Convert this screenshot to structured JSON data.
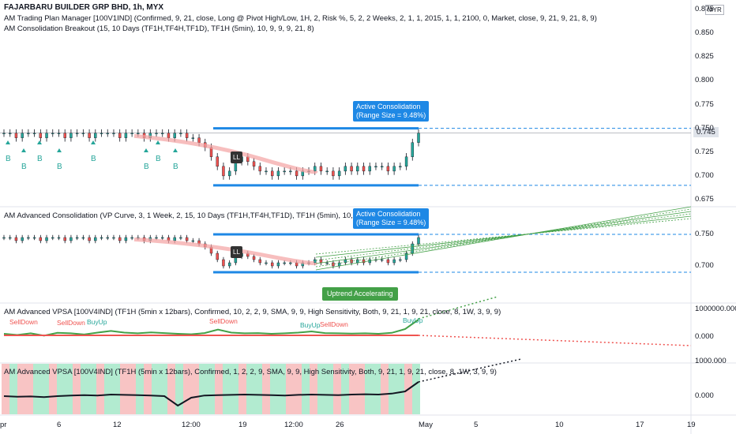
{
  "header": {
    "title": "FAJARBARU BUILDER GRP BHD, 1h, MYX",
    "indicator1": "AM Trading Plan Manager [100V1IND] (Confirmed, 9, 21, close, Long @ Pivot High/Low, 1H, 2, Risk %, 5, 2, 2 Weeks, 2, 1, 1, 2015, 1, 1, 2100, 0, Market, close, 9, 21, 9, 21, 8, 9)",
    "indicator2": "AM Consolidation Breakout (15, 10 Days (TF1H,TF4H,TF1D), TF1H (5min), 10, 9, 9, 9, 21, 8)"
  },
  "currency": "MYR",
  "pane2": {
    "title": "AM Advanced Consolidation (VP Curve, 3, 1 Week, 2, 15, 10 Days (TF1H,TF4H,TF1D), TF1H (5min), 10, 9, 9, 9, 21, 8, 9, 21)",
    "uptrend_label": "Uptrend Accelerating"
  },
  "pane3": {
    "title": "AM Advanced VPSA [100V4IND] (TF1H (5min x 12bars), Confirmed, 10, 2, 2, 9, SMA, 9, 9, High Sensitivity, Both, 9, 21, 1, 9, 21, close, 8, 1W, 3, 9, 9)",
    "tags": [
      {
        "text": "SellDown",
        "color": "#ef5350"
      },
      {
        "text": "SellDown",
        "color": "#ef5350"
      },
      {
        "text": "BuyUp",
        "color": "#26a69a"
      },
      {
        "text": "SellDown",
        "color": "#ef5350"
      },
      {
        "text": "BuyUp",
        "color": "#26a69a"
      },
      {
        "text": "SellDown",
        "color": "#ef5350"
      },
      {
        "text": "BuyUp",
        "color": "#26a69a"
      }
    ]
  },
  "pane4": {
    "title": "AM Advanced VPSA [100V4IND] (TF1H (5min x 12bars), Confirmed, 1, 2, 2, 9, SMA, 9, 9, High Sensitivity, Both, 9, 21, 1, 9, 21, close, 8, 1W, 3, 9, 9)"
  },
  "annotations": {
    "active_consolidation_line1": "Active Consolidation",
    "active_consolidation_line2": "(Range Size = 9.48%)",
    "ll": "LL",
    "b": "B"
  },
  "price_axis": {
    "main": [
      "0.875",
      "0.850",
      "0.825",
      "0.800",
      "0.775",
      "0.750",
      "0.725",
      "0.700",
      "0.675"
    ],
    "current": "0.745",
    "pane2": [
      "0.750",
      "0.700"
    ],
    "pane3": [
      "1000000.000",
      "0.000"
    ],
    "pane4": [
      "1000.000",
      "0.000"
    ]
  },
  "time_axis": [
    "pr",
    "6",
    "12",
    "12:00",
    "19",
    "12:00",
    "26",
    "May",
    "5",
    "10",
    "17",
    "19"
  ],
  "colors": {
    "bull": "#26a69a",
    "bear": "#ef5350",
    "consolidation": "#1e88e5",
    "trend_lines": "#43a047",
    "vp_curve": "#f4a3a3",
    "green_zone": "#b2ebd0",
    "red_zone": "#f8c4c4"
  },
  "chart_data": [
    {
      "type": "candlestick",
      "title": "FAJARBARU BUILDER GRP BHD, 1h, MYX",
      "ylim": [
        0.675,
        0.875
      ],
      "consolidation_range": {
        "high": 0.75,
        "low": 0.69,
        "range_size_pct": 9.48
      },
      "last_price": 0.745,
      "close_series": [
        0.745,
        0.745,
        0.74,
        0.745,
        0.745,
        0.745,
        0.74,
        0.745,
        0.745,
        0.745,
        0.74,
        0.745,
        0.745,
        0.745,
        0.74,
        0.745,
        0.745,
        0.745,
        0.745,
        0.74,
        0.745,
        0.745,
        0.745,
        0.74,
        0.745,
        0.745,
        0.745,
        0.74,
        0.745,
        0.745,
        0.74,
        0.74,
        0.735,
        0.73,
        0.72,
        0.71,
        0.7,
        0.705,
        0.715,
        0.72,
        0.715,
        0.71,
        0.705,
        0.705,
        0.7,
        0.705,
        0.705,
        0.705,
        0.7,
        0.705,
        0.705,
        0.71,
        0.705,
        0.705,
        0.7,
        0.705,
        0.71,
        0.705,
        0.71,
        0.705,
        0.71,
        0.71,
        0.71,
        0.705,
        0.71,
        0.71,
        0.72,
        0.735,
        0.745
      ]
    },
    {
      "type": "line",
      "title": "AM Advanced VPSA",
      "ylim": [
        -200000,
        1000000
      ],
      "series": [
        {
          "name": "",
          "values": [
            0.0,
            -0.05,
            0.02,
            -0.08,
            0.04,
            0.02,
            -0.03,
            0.05,
            0.12,
            0.05,
            0.02,
            0.06,
            0.03,
            0.0,
            -0.02,
            0.03,
            0.18,
            0.05,
            0.02,
            0.03,
            0.0,
            0.02,
            0.05,
            0.1,
            0.03,
            0.02,
            0.01,
            0.02,
            0.0,
            0.04,
            0.2,
            0.6
          ]
        }
      ]
    },
    {
      "type": "line",
      "title": "AM Advanced VPSA",
      "ylim": [
        -600,
        1000
      ],
      "series": [
        {
          "name": "",
          "values": [
            0.0,
            -0.02,
            -0.01,
            -0.03,
            0.0,
            0.02,
            0.03,
            0.02,
            0.05,
            0.04,
            0.03,
            0.02,
            0.0,
            -0.3,
            -0.05,
            0.02,
            0.03,
            0.04,
            0.05,
            0.04,
            0.03,
            0.02,
            0.04,
            0.05,
            0.04,
            0.03,
            0.05,
            0.06,
            0.05,
            0.08,
            0.15,
            0.45
          ]
        }
      ]
    }
  ]
}
